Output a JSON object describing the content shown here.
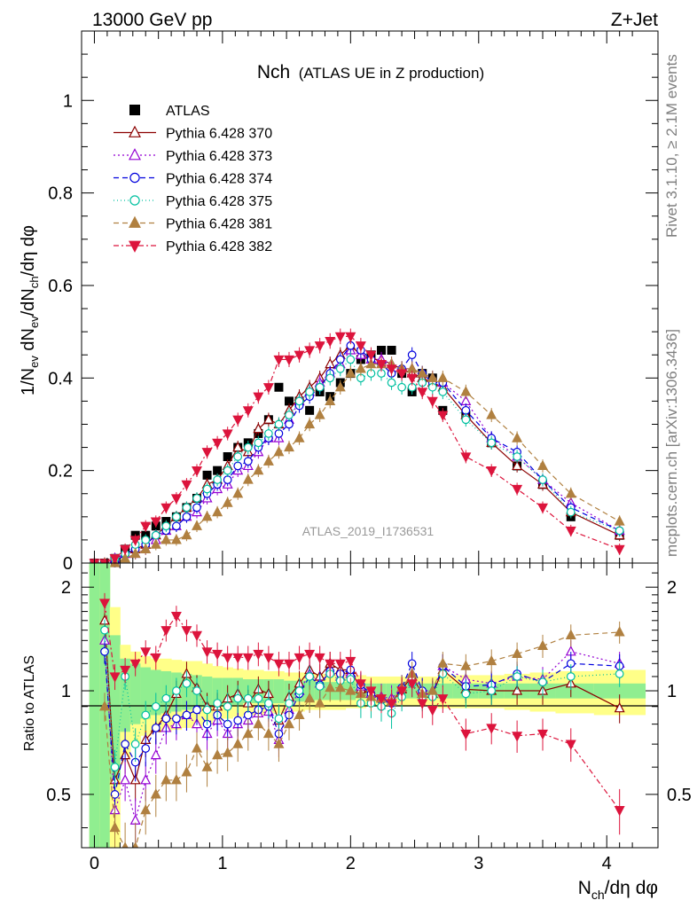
{
  "header": {
    "left": "13000 GeV pp",
    "right": "Z+Jet"
  },
  "title_main": "Nch",
  "title_sub": "(ATLAS UE in Z production)",
  "side_text_top": "Rivet 3.1.10, ≥ 2.1M events",
  "side_text_bottom": "mcplots.cern.ch [arXiv:1306.3436]",
  "analysis_label": "ATLAS_2019_I1736531",
  "chart_data": [
    {
      "type": "scatter",
      "panel": "main",
      "ylabel": "1/N_ev dN_ev/dN_ch/dη dφ",
      "xlim": [
        -0.1,
        4.4
      ],
      "ylim": [
        0,
        1.15
      ],
      "yticks": [
        0,
        0.2,
        0.4,
        0.6,
        0.8,
        1
      ],
      "ytick_labels": [
        "0",
        "0.2",
        "0.4",
        "0.6",
        "0.8",
        "1"
      ],
      "legend_position": "top-left",
      "x": [
        0.0,
        0.08,
        0.16,
        0.24,
        0.32,
        0.4,
        0.48,
        0.56,
        0.64,
        0.72,
        0.8,
        0.88,
        0.96,
        1.04,
        1.12,
        1.2,
        1.28,
        1.36,
        1.44,
        1.52,
        1.6,
        1.68,
        1.76,
        1.84,
        1.92,
        2.0,
        2.08,
        2.16,
        2.24,
        2.32,
        2.4,
        2.48,
        2.56,
        2.64,
        2.72,
        2.9,
        3.1,
        3.3,
        3.5,
        3.72,
        4.1
      ],
      "series": [
        {
          "name": "ATLAS",
          "color": "#000000",
          "marker": "square",
          "dash": "none",
          "values": [
            0.0,
            0.0,
            0.01,
            0.03,
            0.06,
            0.06,
            0.08,
            0.09,
            0.1,
            0.12,
            0.14,
            0.19,
            0.2,
            0.23,
            0.25,
            0.26,
            0.28,
            0.31,
            0.38,
            0.35,
            0.35,
            0.33,
            0.37,
            0.36,
            0.39,
            0.41,
            0.44,
            0.45,
            0.46,
            0.46,
            0.41,
            0.37,
            0.41,
            0.4,
            0.33,
            0.32,
            0.26,
            0.21,
            0.17,
            0.1,
            0.06
          ]
        },
        {
          "name": "Pythia 6.428 370",
          "color": "#8b0000",
          "marker": "triangle-open",
          "dash": "none",
          "values": [
            0.0,
            0.0,
            0.01,
            0.02,
            0.03,
            0.04,
            0.06,
            0.08,
            0.1,
            0.12,
            0.14,
            0.17,
            0.18,
            0.21,
            0.25,
            0.24,
            0.29,
            0.31,
            0.3,
            0.33,
            0.36,
            0.38,
            0.4,
            0.43,
            0.45,
            0.47,
            0.45,
            0.44,
            0.44,
            0.43,
            0.42,
            0.41,
            0.4,
            0.39,
            0.38,
            0.32,
            0.26,
            0.21,
            0.17,
            0.11,
            0.06
          ]
        },
        {
          "name": "Pythia 6.428 373",
          "color": "#9400d3",
          "marker": "triangle-open",
          "dash": "2,3",
          "values": [
            0.0,
            0.0,
            0.01,
            0.02,
            0.02,
            0.03,
            0.05,
            0.07,
            0.08,
            0.1,
            0.11,
            0.14,
            0.16,
            0.17,
            0.2,
            0.21,
            0.24,
            0.27,
            0.27,
            0.31,
            0.35,
            0.37,
            0.39,
            0.41,
            0.43,
            0.46,
            0.45,
            0.44,
            0.44,
            0.43,
            0.42,
            0.42,
            0.41,
            0.4,
            0.39,
            0.35,
            0.27,
            0.23,
            0.18,
            0.13,
            0.07
          ]
        },
        {
          "name": "Pythia 6.428 374",
          "color": "#0000dd",
          "marker": "circle-open",
          "dash": "6,4",
          "values": [
            0.0,
            0.0,
            0.0,
            0.02,
            0.03,
            0.04,
            0.06,
            0.07,
            0.08,
            0.1,
            0.12,
            0.15,
            0.17,
            0.18,
            0.21,
            0.22,
            0.25,
            0.27,
            0.28,
            0.3,
            0.34,
            0.36,
            0.38,
            0.41,
            0.44,
            0.47,
            0.46,
            0.44,
            0.43,
            0.41,
            0.42,
            0.45,
            0.41,
            0.39,
            0.39,
            0.33,
            0.27,
            0.24,
            0.18,
            0.12,
            0.07
          ]
        },
        {
          "name": "Pythia 6.428 375",
          "color": "#00c0a0",
          "marker": "circle-open",
          "dash": "1,3",
          "values": [
            0.0,
            0.0,
            0.01,
            0.02,
            0.04,
            0.05,
            0.06,
            0.08,
            0.1,
            0.12,
            0.14,
            0.16,
            0.18,
            0.2,
            0.23,
            0.25,
            0.26,
            0.28,
            0.3,
            0.32,
            0.35,
            0.37,
            0.38,
            0.4,
            0.42,
            0.44,
            0.4,
            0.41,
            0.41,
            0.39,
            0.38,
            0.38,
            0.39,
            0.38,
            0.37,
            0.31,
            0.26,
            0.23,
            0.18,
            0.11,
            0.07
          ]
        },
        {
          "name": "Pythia 6.428 381",
          "color": "#b08040",
          "marker": "triangle-filled",
          "dash": "6,4",
          "values": [
            0.0,
            0.0,
            0.0,
            0.01,
            0.02,
            0.03,
            0.04,
            0.05,
            0.05,
            0.06,
            0.08,
            0.1,
            0.11,
            0.13,
            0.15,
            0.18,
            0.2,
            0.22,
            0.24,
            0.25,
            0.27,
            0.3,
            0.32,
            0.35,
            0.38,
            0.41,
            0.42,
            0.43,
            0.43,
            0.43,
            0.42,
            0.42,
            0.41,
            0.4,
            0.4,
            0.37,
            0.32,
            0.27,
            0.21,
            0.15,
            0.09
          ]
        },
        {
          "name": "Pythia 6.428 382",
          "color": "#dc143c",
          "marker": "triangle-down-filled",
          "dash": "6,3,2,3",
          "values": [
            0.0,
            0.0,
            0.01,
            0.03,
            0.05,
            0.08,
            0.09,
            0.12,
            0.14,
            0.17,
            0.2,
            0.24,
            0.26,
            0.28,
            0.31,
            0.33,
            0.36,
            0.38,
            0.44,
            0.44,
            0.45,
            0.46,
            0.47,
            0.48,
            0.49,
            0.49,
            0.47,
            0.45,
            0.43,
            0.42,
            0.41,
            0.4,
            0.37,
            0.35,
            0.32,
            0.23,
            0.2,
            0.16,
            0.12,
            0.07,
            0.03
          ]
        }
      ]
    },
    {
      "type": "line",
      "panel": "ratio",
      "ylabel": "Ratio to ATLAS",
      "xlabel": "N_ch/dη dφ",
      "xlim": [
        -0.1,
        4.4
      ],
      "ylim": [
        0.35,
        2.35
      ],
      "yticks": [
        0.5,
        1,
        2
      ],
      "ytick_labels": [
        "0.5",
        "1",
        "2"
      ],
      "xticks": [
        0,
        1,
        2,
        3,
        4
      ],
      "xtick_labels": [
        "0",
        "1",
        "2",
        "3",
        "4"
      ],
      "band_edges": [
        -0.04,
        0.04,
        0.12,
        0.2,
        0.28,
        0.36,
        0.44,
        0.52,
        0.6,
        0.68,
        0.76,
        0.84,
        0.92,
        1.0,
        1.08,
        1.16,
        1.24,
        1.32,
        1.4,
        1.48,
        1.56,
        1.64,
        1.72,
        1.8,
        1.88,
        1.96,
        2.04,
        2.12,
        2.2,
        2.28,
        2.36,
        2.44,
        2.52,
        2.6,
        2.68,
        2.8,
        3.0,
        3.2,
        3.4,
        3.6,
        3.9,
        4.3
      ],
      "band_stat_halfwidth": [
        1.4,
        1.4,
        0.45,
        0.24,
        0.2,
        0.17,
        0.15,
        0.14,
        0.13,
        0.12,
        0.11,
        0.1,
        0.09,
        0.09,
        0.09,
        0.08,
        0.08,
        0.08,
        0.08,
        0.07,
        0.07,
        0.07,
        0.06,
        0.06,
        0.06,
        0.06,
        0.05,
        0.05,
        0.05,
        0.05,
        0.05,
        0.05,
        0.05,
        0.05,
        0.05,
        0.05,
        0.05,
        0.05,
        0.05,
        0.05,
        0.05
      ],
      "band_total_halfwidth": [
        1.4,
        1.4,
        0.75,
        0.36,
        0.3,
        0.26,
        0.24,
        0.24,
        0.23,
        0.22,
        0.22,
        0.2,
        0.18,
        0.17,
        0.16,
        0.15,
        0.15,
        0.14,
        0.14,
        0.13,
        0.13,
        0.12,
        0.12,
        0.12,
        0.12,
        0.11,
        0.11,
        0.1,
        0.1,
        0.1,
        0.1,
        0.1,
        0.1,
        0.1,
        0.11,
        0.11,
        0.11,
        0.12,
        0.13,
        0.14,
        0.15
      ],
      "ratios": [
        {
          "name": "Pythia 6.428 370",
          "values": [
            null,
            1.6,
            0.55,
            0.65,
            0.55,
            0.72,
            0.78,
            0.85,
            0.98,
            1.12,
            1.02,
            0.9,
            0.9,
            0.95,
            0.98,
            0.92,
            1.01,
            0.98,
            0.82,
            0.96,
            1.05,
            1.15,
            1.1,
            1.2,
            1.15,
            1.15,
            1.01,
            0.98,
            0.95,
            0.93,
            1.01,
            1.1,
            0.98,
            0.98,
            1.15,
            1.01,
            1.0,
            1.0,
            1.0,
            1.05,
            0.89
          ]
        },
        {
          "name": "Pythia 6.428 373",
          "values": [
            null,
            1.4,
            0.45,
            0.55,
            0.42,
            0.55,
            0.65,
            0.78,
            0.8,
            0.85,
            0.8,
            0.75,
            0.82,
            0.75,
            0.8,
            0.82,
            0.86,
            0.87,
            0.72,
            0.88,
            1.0,
            1.12,
            1.05,
            1.14,
            1.1,
            1.12,
            1.03,
            0.98,
            0.96,
            0.95,
            1.02,
            1.12,
            1.0,
            1.0,
            1.18,
            1.08,
            1.05,
            1.1,
            1.08,
            1.3,
            1.2
          ]
        },
        {
          "name": "Pythia 6.428 374",
          "values": [
            null,
            1.3,
            0.5,
            0.7,
            0.62,
            0.68,
            0.78,
            0.83,
            0.83,
            0.85,
            0.88,
            0.8,
            0.85,
            0.8,
            0.82,
            0.85,
            0.88,
            0.9,
            0.75,
            0.85,
            0.98,
            1.1,
            1.04,
            1.14,
            1.12,
            1.15,
            1.04,
            0.98,
            0.94,
            0.92,
            1.02,
            1.2,
            1.0,
            0.98,
            1.18,
            1.03,
            1.04,
            1.12,
            1.06,
            1.2,
            1.18
          ]
        },
        {
          "name": "Pythia 6.428 375",
          "values": [
            null,
            1.5,
            0.6,
            1.1,
            0.7,
            0.85,
            0.9,
            0.95,
            1.0,
            1.05,
            1.0,
            0.88,
            0.92,
            0.9,
            0.95,
            0.95,
            0.95,
            0.92,
            0.83,
            0.92,
            1.0,
            1.1,
            1.03,
            1.12,
            1.07,
            1.08,
            0.92,
            0.92,
            0.9,
            0.86,
            0.96,
            1.05,
            0.96,
            0.96,
            1.12,
            0.98,
            1.0,
            1.1,
            1.06,
            1.1,
            1.12
          ]
        },
        {
          "name": "Pythia 6.428 381",
          "values": [
            null,
            0.9,
            0.4,
            0.35,
            0.35,
            0.45,
            0.5,
            0.55,
            0.55,
            0.58,
            0.68,
            0.6,
            0.65,
            0.66,
            0.7,
            0.75,
            0.8,
            0.75,
            0.7,
            0.8,
            0.85,
            0.95,
            0.92,
            1.02,
            1.02,
            1.0,
            0.98,
            0.96,
            0.95,
            0.93,
            1.02,
            1.12,
            0.98,
            1.0,
            1.2,
            1.18,
            1.22,
            1.28,
            1.35,
            1.45,
            1.48
          ]
        },
        {
          "name": "Pythia 6.428 382",
          "values": [
            null,
            1.8,
            1.1,
            1.15,
            1.2,
            1.3,
            1.25,
            1.5,
            1.65,
            1.5,
            1.45,
            1.3,
            1.28,
            1.25,
            1.25,
            1.25,
            1.28,
            1.25,
            1.2,
            1.2,
            1.25,
            1.28,
            1.25,
            1.2,
            1.2,
            1.22,
            1.05,
            1.0,
            0.95,
            0.92,
            1.0,
            1.05,
            0.92,
            0.88,
            0.95,
            0.75,
            0.78,
            0.74,
            0.75,
            0.7,
            0.45
          ]
        }
      ]
    }
  ]
}
